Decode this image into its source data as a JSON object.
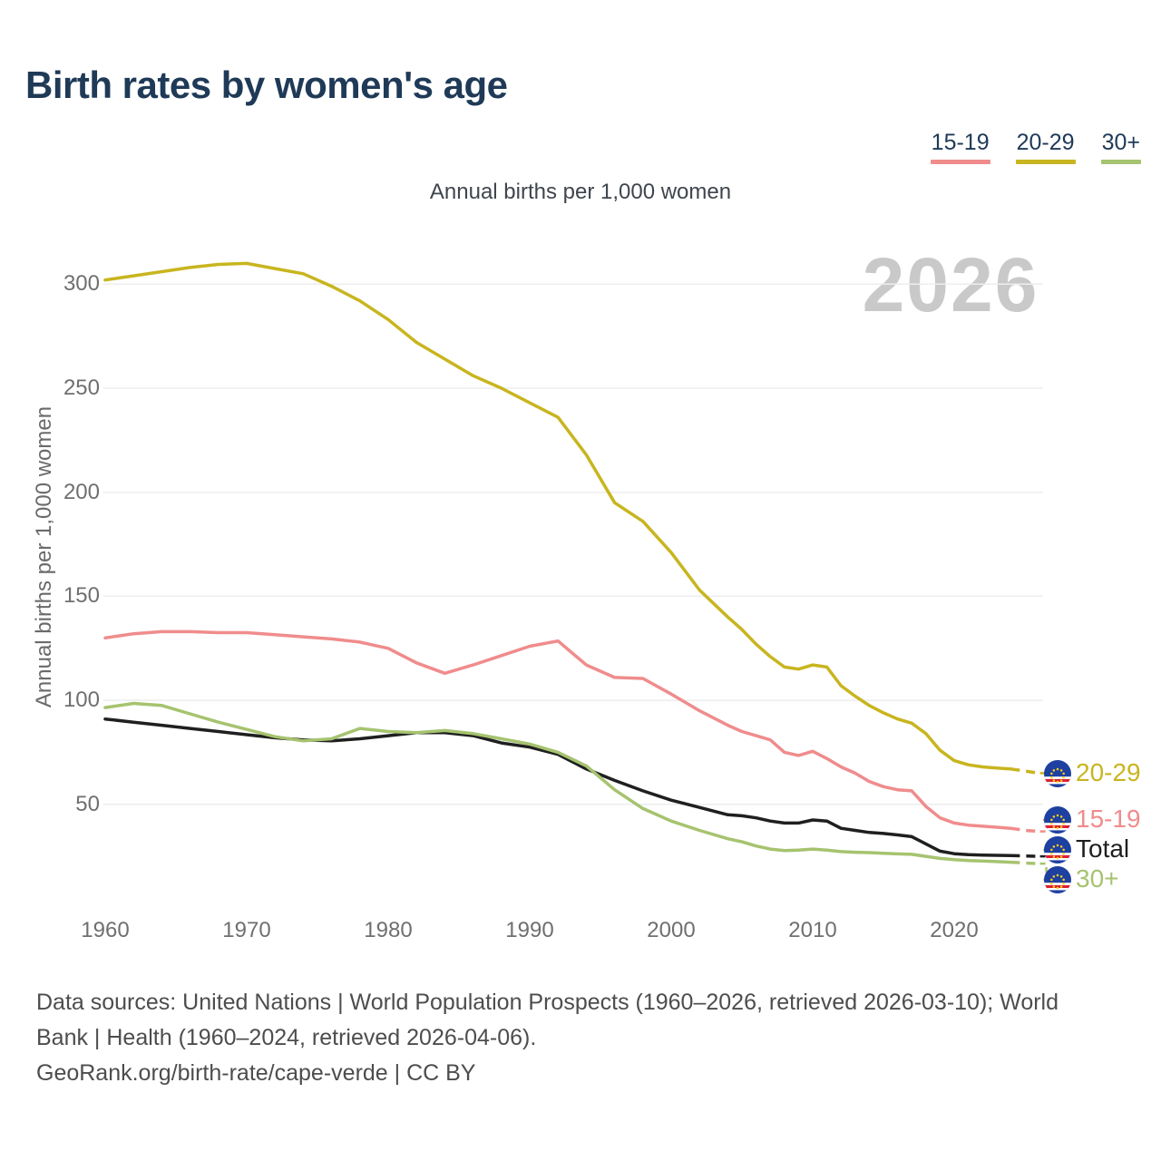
{
  "page": {
    "title": "Birth rates by women's age",
    "subtitle": "Annual births per 1,000 women",
    "watermark": "2026"
  },
  "legend": [
    {
      "label": "15-19",
      "color": "#f08c8c"
    },
    {
      "label": "20-29",
      "color": "#c8b51f"
    },
    {
      "label": "30+",
      "color": "#a6c36f"
    }
  ],
  "colors": {
    "title_navy": "#1f3a57",
    "axis_gray": "#6f6f6f",
    "grid": "#ededed",
    "watermark": "#c9c9c9",
    "flag_blue": "#1e40a0",
    "flag_red": "#de1f35",
    "flag_star": "#ffd317"
  },
  "chart_data": {
    "type": "line",
    "title": "Birth rates by women's age",
    "subtitle": "Annual births per 1,000 women",
    "ylabel": "Annual births per 1,000 women",
    "xlabel": "",
    "grid": true,
    "legend_position": "top-right",
    "xticks": [
      1960,
      1970,
      1980,
      1990,
      2000,
      2010,
      2020
    ],
    "yticks": [
      50,
      100,
      150,
      200,
      250,
      300
    ],
    "xlim": [
      1958.5,
      2027
    ],
    "ylim": [
      0,
      320
    ],
    "projection_start": 2024,
    "x": [
      1960,
      1962,
      1964,
      1966,
      1968,
      1970,
      1972,
      1974,
      1976,
      1978,
      1980,
      1982,
      1984,
      1986,
      1988,
      1990,
      1992,
      1994,
      1996,
      1998,
      2000,
      2002,
      2004,
      2005,
      2006,
      2007,
      2008,
      2009,
      2010,
      2011,
      2012,
      2013,
      2014,
      2015,
      2016,
      2017,
      2018,
      2019,
      2020,
      2021,
      2022,
      2023,
      2024,
      2025,
      2026
    ],
    "series": [
      {
        "name": "20-29",
        "color": "#c8b51f",
        "values": [
          302,
          304,
          306,
          308,
          309.5,
          310,
          307.5,
          305,
          299,
          292,
          283,
          272,
          264,
          256,
          250,
          243,
          236,
          218,
          195,
          186,
          171,
          153,
          140,
          134,
          127,
          121,
          116,
          115,
          117,
          116,
          107,
          102,
          97.5,
          94,
          91,
          89,
          84,
          76,
          71,
          69,
          68,
          67.5,
          67,
          66,
          65
        ]
      },
      {
        "name": "15-19",
        "color": "#f08c8c",
        "values": [
          130,
          132,
          133,
          133,
          132.5,
          132.5,
          131.5,
          130.5,
          129.5,
          128,
          125,
          118,
          113,
          117,
          121.5,
          126,
          128.5,
          117,
          111,
          110.5,
          103,
          95,
          88,
          85,
          83,
          81,
          75,
          73.5,
          75.5,
          72,
          68,
          65,
          61,
          58.5,
          57,
          56.5,
          49,
          43.5,
          41,
          40,
          39.5,
          39,
          38.5,
          37.5,
          37
        ]
      },
      {
        "name": "Total",
        "color": "#1f1f1f",
        "values": [
          91,
          89.5,
          88,
          86.5,
          85,
          83.5,
          82,
          81,
          80.5,
          81.5,
          83,
          84.5,
          84.5,
          83,
          79.5,
          77.5,
          74,
          67,
          61.5,
          56.5,
          52,
          48.5,
          45,
          44.5,
          43.5,
          42,
          41,
          41,
          42.5,
          42,
          38.5,
          37.5,
          36.5,
          36,
          35.3,
          34.5,
          31,
          27.5,
          26.3,
          25.8,
          25.6,
          25.5,
          25.4,
          25.2,
          25
        ]
      },
      {
        "name": "30+",
        "color": "#a6c36f",
        "values": [
          96.5,
          98.5,
          97.5,
          93.5,
          89.5,
          86,
          82.5,
          80.5,
          81.5,
          86.5,
          85,
          84.5,
          85.5,
          84,
          81.5,
          79,
          75,
          68.5,
          57,
          48,
          42,
          37.5,
          33.5,
          32,
          30,
          28.5,
          27.8,
          28,
          28.5,
          28,
          27.3,
          27,
          26.8,
          26.5,
          26.2,
          26,
          25,
          24,
          23.4,
          23,
          22.8,
          22.5,
          22.2,
          21.8,
          21.5
        ]
      }
    ]
  },
  "footer": {
    "sources_line": "Data sources: United Nations | World Population Prospects (1960–2026, retrieved 2026-03-10); World Bank | Health (1960–2024, retrieved 2026-04-06).",
    "link_line": "GeoRank.org/birth-rate/cape-verde | CC BY"
  }
}
